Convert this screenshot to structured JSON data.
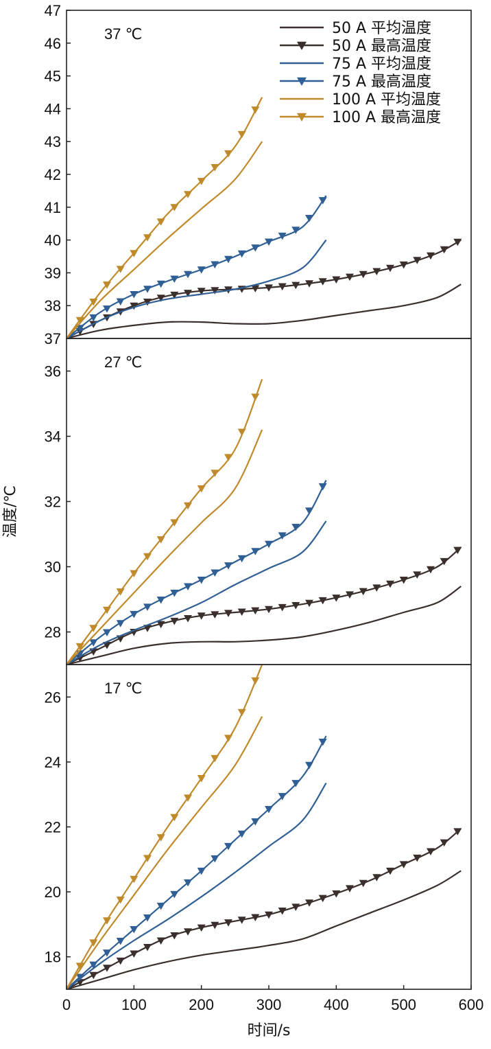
{
  "chart_data": {
    "type": "line",
    "xlabel": "时间/s",
    "ylabel": "温度/℃",
    "xlim": [
      0,
      600
    ],
    "xticks": [
      0,
      100,
      200,
      300,
      400,
      500,
      600
    ],
    "colors": {
      "50 A": "#3a2f2c",
      "75 A": "#2f5f94",
      "100 A": "#c08a2a"
    },
    "legend": [
      {
        "label": "50 A 平均温度",
        "color": "#3a2f2c",
        "marker": false
      },
      {
        "label": "50 A 最高温度",
        "color": "#3a2f2c",
        "marker": true
      },
      {
        "label": "75 A 平均温度",
        "color": "#2f5f94",
        "marker": false
      },
      {
        "label": "75 A 最高温度",
        "color": "#2f5f94",
        "marker": true
      },
      {
        "label": "100 A 平均温度",
        "color": "#c08a2a",
        "marker": false
      },
      {
        "label": "100 A 最高温度",
        "color": "#c08a2a",
        "marker": true
      }
    ],
    "panels": [
      {
        "title": "37 ℃",
        "ylim": [
          37,
          47
        ],
        "yticks": [
          37,
          38,
          39,
          40,
          41,
          42,
          43,
          44,
          45,
          46,
          47
        ],
        "series": [
          {
            "name": "50 A 平均温度",
            "color": "#3a2f2c",
            "marker": false,
            "x": [
              0,
              50,
              100,
              150,
              200,
              250,
              300,
              350,
              400,
              450,
              500,
              550,
              585
            ],
            "y": [
              37.0,
              37.25,
              37.4,
              37.5,
              37.5,
              37.45,
              37.45,
              37.55,
              37.7,
              37.85,
              38.0,
              38.25,
              38.65
            ]
          },
          {
            "name": "50 A 最高温度",
            "color": "#3a2f2c",
            "marker": true,
            "x": [
              0,
              50,
              100,
              150,
              200,
              250,
              300,
              350,
              400,
              450,
              500,
              550,
              585
            ],
            "y": [
              37.0,
              37.55,
              38.0,
              38.3,
              38.45,
              38.5,
              38.55,
              38.65,
              38.8,
              39.0,
              39.25,
              39.6,
              40.0
            ]
          },
          {
            "name": "75 A 平均温度",
            "color": "#2f5f94",
            "marker": false,
            "x": [
              0,
              50,
              100,
              150,
              200,
              250,
              300,
              350,
              385
            ],
            "y": [
              37.0,
              37.55,
              37.95,
              38.2,
              38.35,
              38.5,
              38.75,
              39.15,
              40.0
            ]
          },
          {
            "name": "75 A 最高温度",
            "color": "#2f5f94",
            "marker": true,
            "x": [
              0,
              50,
              100,
              150,
              200,
              250,
              300,
              350,
              385
            ],
            "y": [
              37.0,
              37.8,
              38.35,
              38.75,
              39.1,
              39.5,
              39.95,
              40.4,
              41.35
            ]
          },
          {
            "name": "100 A 平均温度",
            "color": "#c08a2a",
            "marker": false,
            "x": [
              0,
              50,
              100,
              150,
              200,
              250,
              290
            ],
            "y": [
              37.0,
              38.15,
              39.1,
              40.05,
              40.95,
              41.85,
              43.0
            ]
          },
          {
            "name": "100 A 最高温度",
            "color": "#c08a2a",
            "marker": true,
            "x": [
              0,
              50,
              100,
              150,
              200,
              250,
              290
            ],
            "y": [
              37.0,
              38.4,
              39.6,
              40.8,
              41.8,
              42.85,
              44.35
            ]
          }
        ]
      },
      {
        "title": "27 ℃",
        "ylim": [
          27,
          37
        ],
        "yticks": [
          28,
          30,
          32,
          34,
          36
        ],
        "series": [
          {
            "name": "50 A 平均温度",
            "color": "#3a2f2c",
            "marker": false,
            "x": [
              0,
              50,
              100,
              150,
              200,
              250,
              300,
              350,
              400,
              450,
              500,
              550,
              585
            ],
            "y": [
              27.0,
              27.25,
              27.5,
              27.65,
              27.7,
              27.7,
              27.75,
              27.85,
              28.05,
              28.3,
              28.6,
              28.9,
              29.4
            ]
          },
          {
            "name": "50 A 最高温度",
            "color": "#3a2f2c",
            "marker": true,
            "x": [
              0,
              50,
              100,
              150,
              200,
              250,
              300,
              350,
              400,
              450,
              500,
              550,
              585
            ],
            "y": [
              27.0,
              27.5,
              28.0,
              28.3,
              28.5,
              28.6,
              28.7,
              28.85,
              29.05,
              29.3,
              29.6,
              30.0,
              30.6
            ]
          },
          {
            "name": "75 A 平均温度",
            "color": "#2f5f94",
            "marker": false,
            "x": [
              0,
              50,
              100,
              150,
              200,
              250,
              300,
              350,
              385
            ],
            "y": [
              27.0,
              27.6,
              28.05,
              28.45,
              28.9,
              29.45,
              29.95,
              30.45,
              31.4
            ]
          },
          {
            "name": "75 A 最高温度",
            "color": "#2f5f94",
            "marker": true,
            "x": [
              0,
              50,
              100,
              150,
              200,
              250,
              300,
              350,
              385
            ],
            "y": [
              27.0,
              27.85,
              28.55,
              29.1,
              29.6,
              30.15,
              30.7,
              31.35,
              32.65
            ]
          },
          {
            "name": "100 A 平均温度",
            "color": "#c08a2a",
            "marker": false,
            "x": [
              0,
              50,
              100,
              150,
              200,
              250,
              290
            ],
            "y": [
              27.0,
              28.1,
              29.2,
              30.3,
              31.35,
              32.4,
              34.2
            ]
          },
          {
            "name": "100 A 最高温度",
            "color": "#c08a2a",
            "marker": true,
            "x": [
              0,
              50,
              100,
              150,
              200,
              250,
              290
            ],
            "y": [
              27.0,
              28.4,
              29.8,
              31.1,
              32.4,
              33.6,
              35.75
            ]
          }
        ]
      },
      {
        "title": "17 ℃",
        "ylim": [
          17,
          27
        ],
        "yticks": [
          18,
          20,
          22,
          24,
          26
        ],
        "series": [
          {
            "name": "50 A 平均温度",
            "color": "#3a2f2c",
            "marker": false,
            "x": [
              0,
              50,
              100,
              150,
              200,
              250,
              300,
              350,
              400,
              450,
              500,
              550,
              585
            ],
            "y": [
              17.0,
              17.3,
              17.6,
              17.85,
              18.05,
              18.2,
              18.35,
              18.55,
              18.95,
              19.35,
              19.75,
              20.2,
              20.65
            ]
          },
          {
            "name": "50 A 最高温度",
            "color": "#3a2f2c",
            "marker": true,
            "x": [
              0,
              50,
              100,
              150,
              200,
              250,
              300,
              350,
              400,
              450,
              500,
              550,
              585
            ],
            "y": [
              17.0,
              17.55,
              18.1,
              18.6,
              18.9,
              19.1,
              19.3,
              19.6,
              19.95,
              20.35,
              20.85,
              21.35,
              21.95
            ]
          },
          {
            "name": "75 A 平均温度",
            "color": "#2f5f94",
            "marker": false,
            "x": [
              0,
              50,
              100,
              150,
              200,
              250,
              300,
              350,
              385
            ],
            "y": [
              17.0,
              17.8,
              18.5,
              19.15,
              19.85,
              20.6,
              21.4,
              22.2,
              23.35
            ]
          },
          {
            "name": "75 A 最高温度",
            "color": "#2f5f94",
            "marker": true,
            "x": [
              0,
              50,
              100,
              150,
              200,
              250,
              300,
              350,
              385
            ],
            "y": [
              17.0,
              17.95,
              18.85,
              19.75,
              20.65,
              21.6,
              22.55,
              23.55,
              24.8
            ]
          },
          {
            "name": "100 A 平均温度",
            "color": "#c08a2a",
            "marker": false,
            "x": [
              0,
              50,
              100,
              150,
              200,
              250,
              290
            ],
            "y": [
              17.0,
              18.5,
              19.9,
              21.3,
              22.6,
              23.9,
              25.4
            ]
          },
          {
            "name": "100 A 最高温度",
            "color": "#c08a2a",
            "marker": true,
            "x": [
              0,
              50,
              100,
              150,
              200,
              250,
              290
            ],
            "y": [
              17.0,
              18.8,
              20.4,
              22.0,
              23.5,
              25.05,
              27.0
            ]
          }
        ]
      }
    ]
  }
}
